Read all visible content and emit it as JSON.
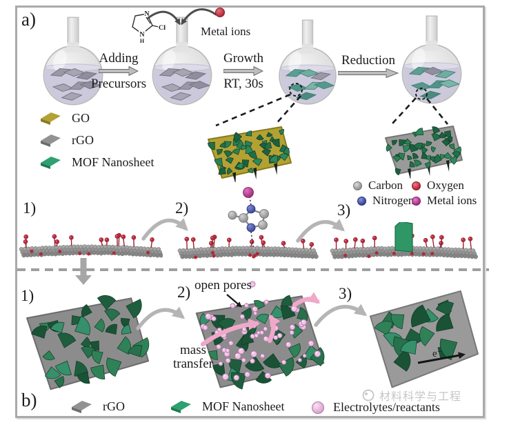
{
  "panel_a": {
    "label": "a)",
    "molecule": {
      "n_top": "N",
      "n_bottom": "N",
      "h": "H",
      "methyl": "CH₃"
    },
    "metal_ions_label": "Metal ions",
    "step1": {
      "line1": "Adding",
      "line2": "Precursors"
    },
    "step2": {
      "line1": "Growth",
      "line2": "RT, 30s"
    },
    "step3": {
      "line1": "Reduction"
    },
    "legend": {
      "go": {
        "label": "GO",
        "color": "#b3a233",
        "edge": "#877a1f"
      },
      "rgo": {
        "label": "rGO",
        "color": "#929292",
        "edge": "#6c6c6c"
      },
      "mof": {
        "label": "MOF Nanosheet",
        "color": "#2fa070",
        "edge": "#1d7a50"
      }
    }
  },
  "mechanism": {
    "step1_label": "1)",
    "step2_label": "2)",
    "step3_label": "3)",
    "legend": [
      {
        "label": "Carbon",
        "color": "#a8a8a8"
      },
      {
        "label": "Oxygen",
        "color": "#c0283a"
      },
      {
        "label": "Nitrogen",
        "color": "#3d4a9e"
      },
      {
        "label": "Metal ions",
        "color": "#b5338f"
      }
    ]
  },
  "panel_b": {
    "label": "b)",
    "step1_label": "1)",
    "step2_label": "2)",
    "step3_label": "3)",
    "open_pores_label": "open pores",
    "mass_transfer_line1": "mass",
    "mass_transfer_line2": "transfer",
    "electron_label": "e⁻",
    "legend": [
      {
        "label": "rGO",
        "color": "#929292",
        "edge": "#6c6c6c"
      },
      {
        "label": "MOF Nanosheet",
        "color": "#2fa070",
        "edge": "#1d7a50"
      },
      {
        "label": "Electrolytes/reactants",
        "color": "#e4aed8",
        "edge": "#b272a8"
      }
    ]
  },
  "watermark": {
    "text": "材料科学与工程"
  }
}
